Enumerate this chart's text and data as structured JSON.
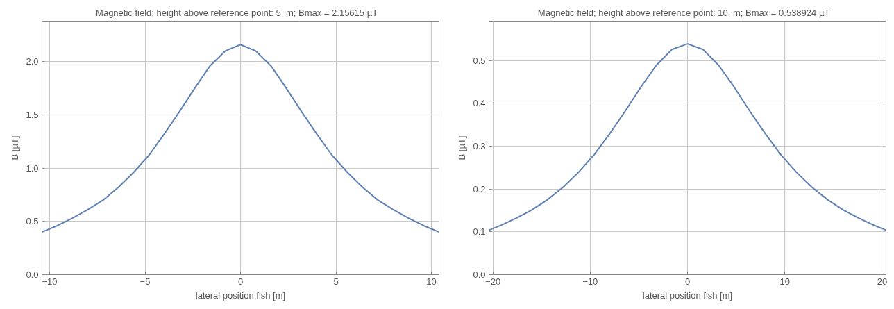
{
  "chart_data": [
    {
      "type": "line",
      "title": "Magnetic field;   height above reference point: 5. m;  Bmax = 2.15615 µT",
      "xlabel": "lateral position fish [m]",
      "ylabel": "B [µT]",
      "x": [
        -10.4,
        -9.6,
        -8.8,
        -8.0,
        -7.2,
        -6.4,
        -5.6,
        -4.8,
        -4.0,
        -3.2,
        -2.4,
        -1.6,
        -0.8,
        0,
        0.8,
        1.6,
        2.4,
        3.2,
        4.0,
        4.8,
        5.6,
        6.4,
        7.2,
        8.0,
        8.8,
        9.6,
        10.4
      ],
      "series": [
        {
          "color": "#5e81b5",
          "values": [
            0.4,
            0.46,
            0.53,
            0.61,
            0.7,
            0.82,
            0.96,
            1.12,
            1.32,
            1.53,
            1.75,
            1.96,
            2.1,
            2.16,
            2.1,
            1.96,
            1.75,
            1.53,
            1.32,
            1.12,
            0.96,
            0.82,
            0.7,
            0.61,
            0.53,
            0.46,
            0.4
          ]
        }
      ],
      "xlim": [
        -10.4,
        10.4
      ],
      "ylim": [
        0,
        2.38
      ],
      "xticks": [
        {
          "value": -10,
          "label": "−10"
        },
        {
          "value": -5,
          "label": "−5"
        },
        0,
        5,
        10
      ],
      "yticks": [
        {
          "value": 0,
          "label": "0.0"
        },
        0.5,
        {
          "value": 1,
          "label": "1.0"
        },
        1.5,
        {
          "value": 2,
          "label": "2.0"
        }
      ],
      "grid": true
    },
    {
      "type": "line",
      "title": "Magnetic field;   height above reference point: 10. m;  Bmax = 0.538924 µT",
      "xlabel": "lateral position fish [m]",
      "ylabel": "B [µT]",
      "x": [
        -20.4,
        -19.2,
        -17.6,
        -16.0,
        -14.4,
        -12.8,
        -11.2,
        -9.6,
        -8.0,
        -6.4,
        -4.8,
        -3.2,
        -1.6,
        0,
        1.6,
        3.2,
        4.8,
        6.4,
        8.0,
        9.6,
        11.2,
        12.8,
        14.4,
        16.0,
        17.6,
        19.2,
        20.4
      ],
      "series": [
        {
          "color": "#5e81b5",
          "values": [
            0.104,
            0.115,
            0.132,
            0.151,
            0.175,
            0.204,
            0.239,
            0.28,
            0.329,
            0.382,
            0.438,
            0.489,
            0.526,
            0.539,
            0.526,
            0.489,
            0.438,
            0.382,
            0.329,
            0.28,
            0.239,
            0.204,
            0.175,
            0.151,
            0.132,
            0.115,
            0.104
          ]
        }
      ],
      "xlim": [
        -20.4,
        20.4
      ],
      "ylim": [
        0,
        0.592
      ],
      "xticks": [
        {
          "value": -20,
          "label": "−20"
        },
        {
          "value": -10,
          "label": "−10"
        },
        0,
        10,
        20
      ],
      "yticks": [
        {
          "value": 0,
          "label": "0.0"
        },
        0.1,
        0.2,
        0.3,
        0.4,
        0.5
      ],
      "grid": true
    }
  ]
}
